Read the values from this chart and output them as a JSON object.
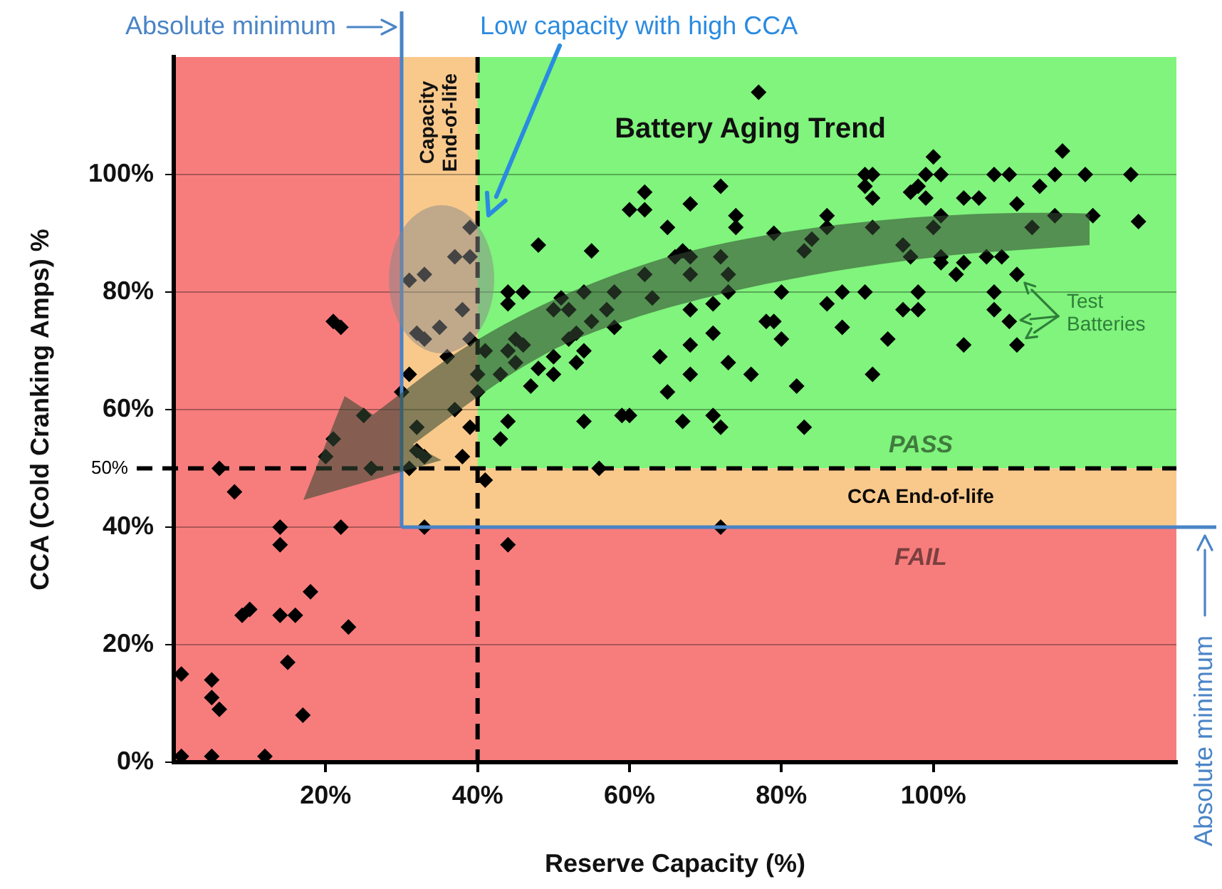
{
  "chart_data": {
    "type": "scatter",
    "title": "Battery Aging Trend",
    "xlabel": "Reserve Capacity (%)",
    "ylabel": "CCA (Cold Cranking Amps) %",
    "color": "#000000",
    "marker": "diamond",
    "x": [
      21,
      22,
      31,
      33,
      38,
      32,
      33,
      35,
      39,
      36,
      31,
      30,
      37,
      25,
      21,
      20,
      32,
      32,
      33,
      39,
      38,
      6,
      26,
      31,
      41,
      8,
      14,
      22,
      33,
      14,
      18,
      9,
      10,
      14,
      16,
      23,
      15,
      1,
      5,
      5,
      6,
      17,
      1,
      5,
      12,
      39,
      37,
      39,
      77,
      72,
      62,
      60,
      62,
      68,
      74,
      74,
      65,
      79,
      48,
      55,
      66,
      67,
      68,
      72,
      62,
      68,
      73,
      44,
      46,
      44,
      54,
      58,
      63,
      73,
      80,
      51,
      50,
      52,
      57,
      55,
      58,
      68,
      71,
      71,
      78,
      79,
      80,
      53,
      52,
      45,
      46,
      54,
      41,
      44,
      68,
      64,
      73,
      50,
      53,
      48,
      45,
      43,
      47,
      50,
      68,
      76,
      82,
      65,
      40,
      40,
      59,
      60,
      54,
      67,
      71,
      72,
      83,
      44,
      43,
      56,
      72,
      44,
      100,
      117,
      91,
      92,
      99,
      101,
      108,
      110,
      116,
      120,
      126,
      91,
      92,
      97,
      98,
      99,
      104,
      106,
      114,
      111,
      86,
      86,
      92,
      101,
      100,
      116,
      121,
      127,
      113,
      84,
      83,
      96,
      97,
      101,
      101,
      104,
      103,
      107,
      109,
      111,
      86,
      88,
      91,
      98,
      96,
      98,
      108,
      108,
      88,
      110,
      94,
      104,
      111,
      92
    ],
    "values": [
      75,
      74,
      82,
      83,
      77,
      73,
      72,
      74,
      72,
      69,
      66,
      63,
      60,
      59,
      55,
      52,
      57,
      53,
      52,
      57,
      52,
      50,
      50,
      50,
      48,
      46,
      40,
      40,
      40,
      37,
      29,
      25,
      26,
      25,
      25,
      23,
      17,
      15,
      14,
      11,
      9,
      8,
      1,
      1,
      1,
      91,
      86,
      86,
      114,
      98,
      97,
      94,
      94,
      95,
      93,
      91,
      91,
      90,
      88,
      87,
      86,
      87,
      86,
      86,
      83,
      83,
      83,
      80,
      80,
      78,
      80,
      80,
      79,
      80,
      80,
      79,
      77,
      77,
      77,
      75,
      74,
      77,
      78,
      73,
      75,
      75,
      72,
      73,
      72,
      72,
      71,
      70,
      70,
      70,
      71,
      69,
      68,
      69,
      68,
      67,
      68,
      66,
      64,
      66,
      66,
      66,
      64,
      63,
      66,
      63,
      59,
      59,
      58,
      58,
      59,
      57,
      57,
      58,
      55,
      50,
      40,
      37,
      103,
      104,
      100,
      100,
      100,
      100,
      100,
      100,
      100,
      100,
      100,
      98,
      96,
      97,
      98,
      96,
      96,
      96,
      98,
      95,
      93,
      91,
      91,
      93,
      91,
      93,
      93,
      92,
      91,
      89,
      87,
      88,
      86,
      86,
      85,
      85,
      83,
      86,
      86,
      83,
      78,
      80,
      80,
      80,
      77,
      77,
      80,
      77,
      74,
      75,
      72,
      71,
      71,
      66
    ],
    "xlim": [
      0,
      132
    ],
    "ylim": [
      0,
      120
    ],
    "xticks": [
      {
        "value": 20,
        "label": "20%"
      },
      {
        "value": 40,
        "label": "40%"
      },
      {
        "value": 60,
        "label": "60%"
      },
      {
        "value": 80,
        "label": "80%"
      },
      {
        "value": 100,
        "label": "100%"
      }
    ],
    "yticks": [
      {
        "value": 0,
        "label": "0%"
      },
      {
        "value": 20,
        "label": "20%"
      },
      {
        "value": 40,
        "label": "40%"
      },
      {
        "value": 60,
        "label": "60%"
      },
      {
        "value": 80,
        "label": "80%"
      },
      {
        "value": 100,
        "label": "100%"
      }
    ],
    "grid": "y",
    "bands": [
      {
        "axis": "y",
        "from": 50,
        "to": 120,
        "label": "PASS",
        "color": "#80f47c"
      },
      {
        "axis": "y",
        "from": 40,
        "to": 50,
        "label": "CCA End-of-life",
        "color": "#f9c98c"
      },
      {
        "axis": "x",
        "from": 30,
        "to": 40,
        "label": "Capacity End-of-life",
        "color": "#f9c98c"
      },
      {
        "axis": "y",
        "from": 0,
        "to": 40,
        "label": "FAIL",
        "color": "#f77d7d"
      },
      {
        "axis": "x",
        "from": 0,
        "to": 30,
        "label": null,
        "color": "#f77d7d"
      }
    ],
    "ref_lines": [
      {
        "axis": "x",
        "value": 40,
        "label": null,
        "color": "#000000",
        "line_style": "dashed"
      },
      {
        "axis": "y",
        "value": 50,
        "label": "50%",
        "color": "#000000",
        "line_style": "dashed"
      },
      {
        "axis": "x",
        "value": 30,
        "label": "Absolute minimum",
        "color": "#4a84c6",
        "line_style": "solid"
      },
      {
        "axis": "y",
        "value": 40,
        "label": "Absolute minimum",
        "color": "#4a84c6",
        "line_style": "solid"
      }
    ],
    "annotations": [
      "Low capacity with high CCA",
      "Test Batteries"
    ]
  }
}
